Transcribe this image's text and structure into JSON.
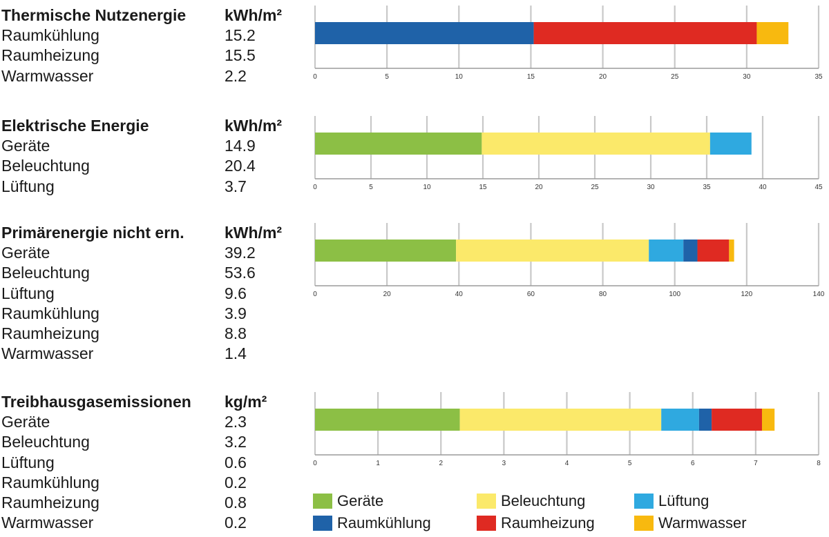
{
  "colors": {
    "geraete": "#8cbf45",
    "beleuchtung": "#fbe96a",
    "lueftung": "#2fa9e0",
    "raumkuehlung": "#1f62a8",
    "raumheizung": "#df2a22",
    "warmwasser": "#f8b90f"
  },
  "legend": [
    {
      "key": "geraete",
      "label": "Geräte"
    },
    {
      "key": "beleuchtung",
      "label": "Beleuchtung"
    },
    {
      "key": "lueftung",
      "label": "Lüftung"
    },
    {
      "key": "raumkuehlung",
      "label": "Raumkühlung"
    },
    {
      "key": "raumheizung",
      "label": "Raumheizung"
    },
    {
      "key": "warmwasser",
      "label": "Warmwasser"
    }
  ],
  "chart_data": [
    {
      "type": "bar",
      "orientation": "horizontal-stacked",
      "title": "Thermische Nutzenergie",
      "unit": "kWh/m²",
      "xlim": [
        0,
        35
      ],
      "ticks": [
        0,
        5,
        10,
        15,
        20,
        25,
        30,
        35
      ],
      "grid": true,
      "series": [
        {
          "name": "Raumkühlung",
          "key": "raumkuehlung",
          "value": 15.2,
          "value_text": "15.2"
        },
        {
          "name": "Raumheizung",
          "key": "raumheizung",
          "value": 15.5,
          "value_text": "15.5"
        },
        {
          "name": "Warmwasser",
          "key": "warmwasser",
          "value": 2.2,
          "value_text": "2.2"
        }
      ]
    },
    {
      "type": "bar",
      "orientation": "horizontal-stacked",
      "title": "Elektrische Energie",
      "unit": "kWh/m²",
      "xlim": [
        0,
        45
      ],
      "ticks": [
        0,
        5,
        10,
        15,
        20,
        25,
        30,
        35,
        40,
        45
      ],
      "grid": true,
      "series": [
        {
          "name": "Geräte",
          "key": "geraete",
          "value": 14.9,
          "value_text": "14.9"
        },
        {
          "name": "Beleuchtung",
          "key": "beleuchtung",
          "value": 20.4,
          "value_text": "20.4"
        },
        {
          "name": "Lüftung",
          "key": "lueftung",
          "value": 3.7,
          "value_text": "3.7"
        }
      ]
    },
    {
      "type": "bar",
      "orientation": "horizontal-stacked",
      "title": "Primärenergie nicht ern.",
      "unit": "kWh/m²",
      "xlim": [
        0,
        140
      ],
      "ticks": [
        0,
        20,
        40,
        60,
        80,
        100,
        120,
        140
      ],
      "grid": true,
      "series": [
        {
          "name": "Geräte",
          "key": "geraete",
          "value": 39.2,
          "value_text": "39.2"
        },
        {
          "name": "Beleuchtung",
          "key": "beleuchtung",
          "value": 53.6,
          "value_text": "53.6"
        },
        {
          "name": "Lüftung",
          "key": "lueftung",
          "value": 9.6,
          "value_text": "9.6"
        },
        {
          "name": "Raumkühlung",
          "key": "raumkuehlung",
          "value": 3.9,
          "value_text": "3.9"
        },
        {
          "name": "Raumheizung",
          "key": "raumheizung",
          "value": 8.8,
          "value_text": "8.8"
        },
        {
          "name": "Warmwasser",
          "key": "warmwasser",
          "value": 1.4,
          "value_text": "1.4"
        }
      ]
    },
    {
      "type": "bar",
      "orientation": "horizontal-stacked",
      "title": "Treibhausgasemissionen",
      "unit": "kg/m²",
      "xlim": [
        0,
        8
      ],
      "ticks": [
        0,
        1,
        2,
        3,
        4,
        5,
        6,
        7,
        8
      ],
      "grid": true,
      "series": [
        {
          "name": "Geräte",
          "key": "geraete",
          "value": 2.3,
          "value_text": "2.3"
        },
        {
          "name": "Beleuchtung",
          "key": "beleuchtung",
          "value": 3.2,
          "value_text": "3.2"
        },
        {
          "name": "Lüftung",
          "key": "lueftung",
          "value": 0.6,
          "value_text": "0.6"
        },
        {
          "name": "Raumkühlung",
          "key": "raumkuehlung",
          "value": 0.2,
          "value_text": "0.2"
        },
        {
          "name": "Raumheizung",
          "key": "raumheizung",
          "value": 0.8,
          "value_text": "0.8"
        },
        {
          "name": "Warmwasser",
          "key": "warmwasser",
          "value": 0.2,
          "value_text": "0.2"
        }
      ]
    }
  ]
}
